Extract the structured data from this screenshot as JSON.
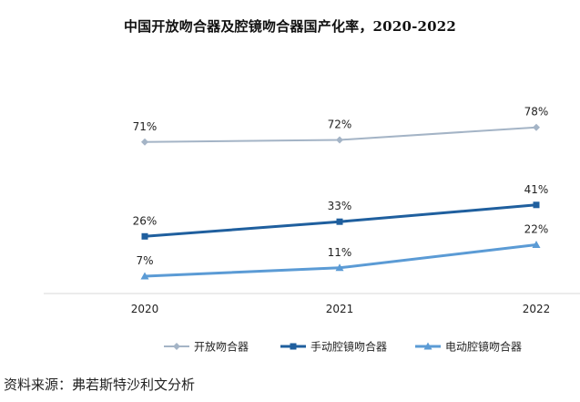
{
  "chart_data": {
    "type": "line",
    "title": "中国开放吻合器及腔镜吻合器国产化率，2020-2022",
    "categories": [
      "2020",
      "2021",
      "2022"
    ],
    "unit": "%",
    "series": [
      {
        "name": "开放吻合器",
        "values": [
          71,
          72,
          78
        ],
        "color": "#a4b4c6",
        "marker": "diamond"
      },
      {
        "name": "手动腔镜吻合器",
        "values": [
          26,
          33,
          41
        ],
        "color": "#1f5f9e",
        "marker": "square"
      },
      {
        "name": "电动腔镜吻合器",
        "values": [
          7,
          11,
          22
        ],
        "color": "#5b9bd5",
        "marker": "triangle"
      }
    ],
    "xlabel": "",
    "ylabel": "",
    "legend_position": "bottom",
    "axis_color": "#d9d9d9"
  },
  "footer": {
    "source": "资料来源：弗若斯特沙利文分析"
  }
}
